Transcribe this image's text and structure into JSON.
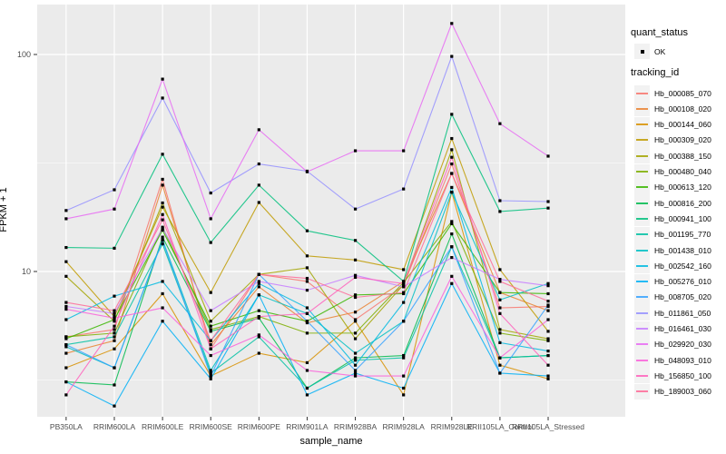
{
  "axes": {
    "y": {
      "title": "FPKM + 1",
      "tick_labels": [
        "100",
        "10"
      ],
      "tick_values": [
        100,
        10
      ]
    },
    "x": {
      "title": "sample_name"
    }
  },
  "legend": {
    "quant_status": {
      "title": "quant_status",
      "items": [
        {
          "label": "OK"
        }
      ]
    },
    "tracking_id": {
      "title": "tracking_id"
    }
  },
  "chart_data": {
    "type": "line",
    "xlabel": "sample_name",
    "ylabel": "FPKM + 1",
    "y_scale": "log10",
    "ylim": [
      2.1,
      170
    ],
    "major_breaks": [
      10,
      100
    ],
    "minor_breaks": [
      3.1623,
      31.623
    ],
    "grid": "on",
    "legend_position": "right",
    "panel_background": "#EBEBEB",
    "gridline_color": "#FFFFFF",
    "point_color": "#000000",
    "categories": [
      "PB350LA",
      "RRIM600LA",
      "RRIM600LE",
      "RRIM600SE",
      "RRIM600PE",
      "RRIM901LA",
      "RRIM928BA",
      "RRIM928LA",
      "RRIM928LE",
      "RRII105LA_Control",
      "RRII105LA_Stressed"
    ],
    "series": [
      {
        "name": "Hb_000085_070",
        "color": "#F8766D",
        "values": [
          5.0,
          5.4,
          26.6,
          4.4,
          9.7,
          9.0,
          6.0,
          8.6,
          31.3,
          6.8,
          6.9
        ]
      },
      {
        "name": "Hb_000108_020",
        "color": "#EA8331",
        "values": [
          4.2,
          4.8,
          25.0,
          4.6,
          8.5,
          5.8,
          6.5,
          9.0,
          28.3,
          8.0,
          6.6
        ]
      },
      {
        "name": "Hb_000144_060",
        "color": "#D89000",
        "values": [
          3.6,
          4.4,
          7.9,
          3.3,
          4.2,
          3.8,
          5.9,
          2.7,
          23.2,
          3.7,
          3.2
        ]
      },
      {
        "name": "Hb_000309_020",
        "color": "#C09B00",
        "values": [
          11.1,
          6.2,
          19.8,
          8.0,
          20.8,
          11.8,
          11.3,
          10.2,
          41.0,
          10.2,
          5.3
        ]
      },
      {
        "name": "Hb_000388_150",
        "color": "#A3A500",
        "values": [
          9.5,
          5.9,
          20.7,
          5.9,
          9.7,
          10.4,
          4.9,
          8.7,
          36.4,
          5.4,
          4.9
        ]
      },
      {
        "name": "Hb_000480_040",
        "color": "#7CAE00",
        "values": [
          5.0,
          5.2,
          16.0,
          5.4,
          6.2,
          5.2,
          5.2,
          8.9,
          17.0,
          5.2,
          4.8
        ]
      },
      {
        "name": "Hb_000613_120",
        "color": "#39B600",
        "values": [
          4.9,
          6.0,
          15.5,
          5.6,
          6.6,
          5.9,
          7.8,
          7.9,
          16.6,
          8.0,
          7.9
        ]
      },
      {
        "name": "Hb_000816_200",
        "color": "#00BB4E",
        "values": [
          3.1,
          3.0,
          14.4,
          5.3,
          6.1,
          2.9,
          4.0,
          4.1,
          14.9,
          4.0,
          4.1
        ]
      },
      {
        "name": "Hb_000941_100",
        "color": "#00BF7D",
        "values": [
          12.9,
          12.8,
          34.7,
          13.6,
          25.0,
          15.4,
          13.9,
          9.0,
          53.0,
          18.9,
          19.6
        ]
      },
      {
        "name": "Hb_001195_770",
        "color": "#00C1A3",
        "values": [
          4.6,
          5.0,
          13.4,
          3.4,
          5.0,
          2.9,
          3.9,
          4.0,
          13.0,
          4.0,
          4.1
        ]
      },
      {
        "name": "Hb_001438_010",
        "color": "#00BFC4",
        "values": [
          4.5,
          3.6,
          14.0,
          3.5,
          7.8,
          6.4,
          4.2,
          5.9,
          23.2,
          7.4,
          8.8
        ]
      },
      {
        "name": "Hb_002542_160",
        "color": "#00BAE0",
        "values": [
          6.0,
          7.7,
          9.0,
          4.8,
          8.8,
          6.8,
          3.7,
          7.2,
          24.4,
          4.7,
          4.3
        ]
      },
      {
        "name": "Hb_005276_010",
        "color": "#00B0F6",
        "values": [
          3.1,
          2.4,
          5.9,
          3.2,
          7.8,
          2.7,
          3.4,
          2.9,
          8.8,
          3.4,
          3.3
        ]
      },
      {
        "name": "Hb_008705_020",
        "color": "#35A2FF",
        "values": [
          4.6,
          3.6,
          13.9,
          3.3,
          9.7,
          5.9,
          3.5,
          5.9,
          13.0,
          3.4,
          7.0
        ]
      },
      {
        "name": "Hb_011861_050",
        "color": "#9590FF",
        "values": [
          19.1,
          23.8,
          63.0,
          23.0,
          31.3,
          29.0,
          19.4,
          24.0,
          98.0,
          21.2,
          21.0
        ]
      },
      {
        "name": "Hb_016461_030",
        "color": "#C77CFF",
        "values": [
          6.9,
          6.4,
          15.8,
          6.6,
          9.0,
          8.2,
          9.6,
          8.5,
          11.6,
          9.2,
          8.6
        ]
      },
      {
        "name": "Hb_029920_030",
        "color": "#E76BF3",
        "values": [
          17.5,
          19.4,
          77.0,
          17.5,
          45.0,
          28.8,
          36.0,
          36.0,
          139.0,
          48.0,
          34.0
        ]
      },
      {
        "name": "Hb_048093_010",
        "color": "#FA62DB",
        "values": [
          6.7,
          6.1,
          6.8,
          4.1,
          5.1,
          3.5,
          3.3,
          3.3,
          9.5,
          4.0,
          6.0
        ]
      },
      {
        "name": "Hb_156850_100",
        "color": "#FF62BC",
        "values": [
          2.7,
          5.6,
          18.3,
          4.4,
          6.2,
          6.4,
          9.4,
          8.8,
          33.6,
          6.4,
          3.7
        ]
      },
      {
        "name": "Hb_189003_060",
        "color": "#FF6A98",
        "values": [
          7.2,
          6.6,
          17.3,
          4.8,
          9.7,
          9.3,
          7.6,
          8.0,
          28.3,
          9.0,
          7.3
        ]
      }
    ]
  }
}
